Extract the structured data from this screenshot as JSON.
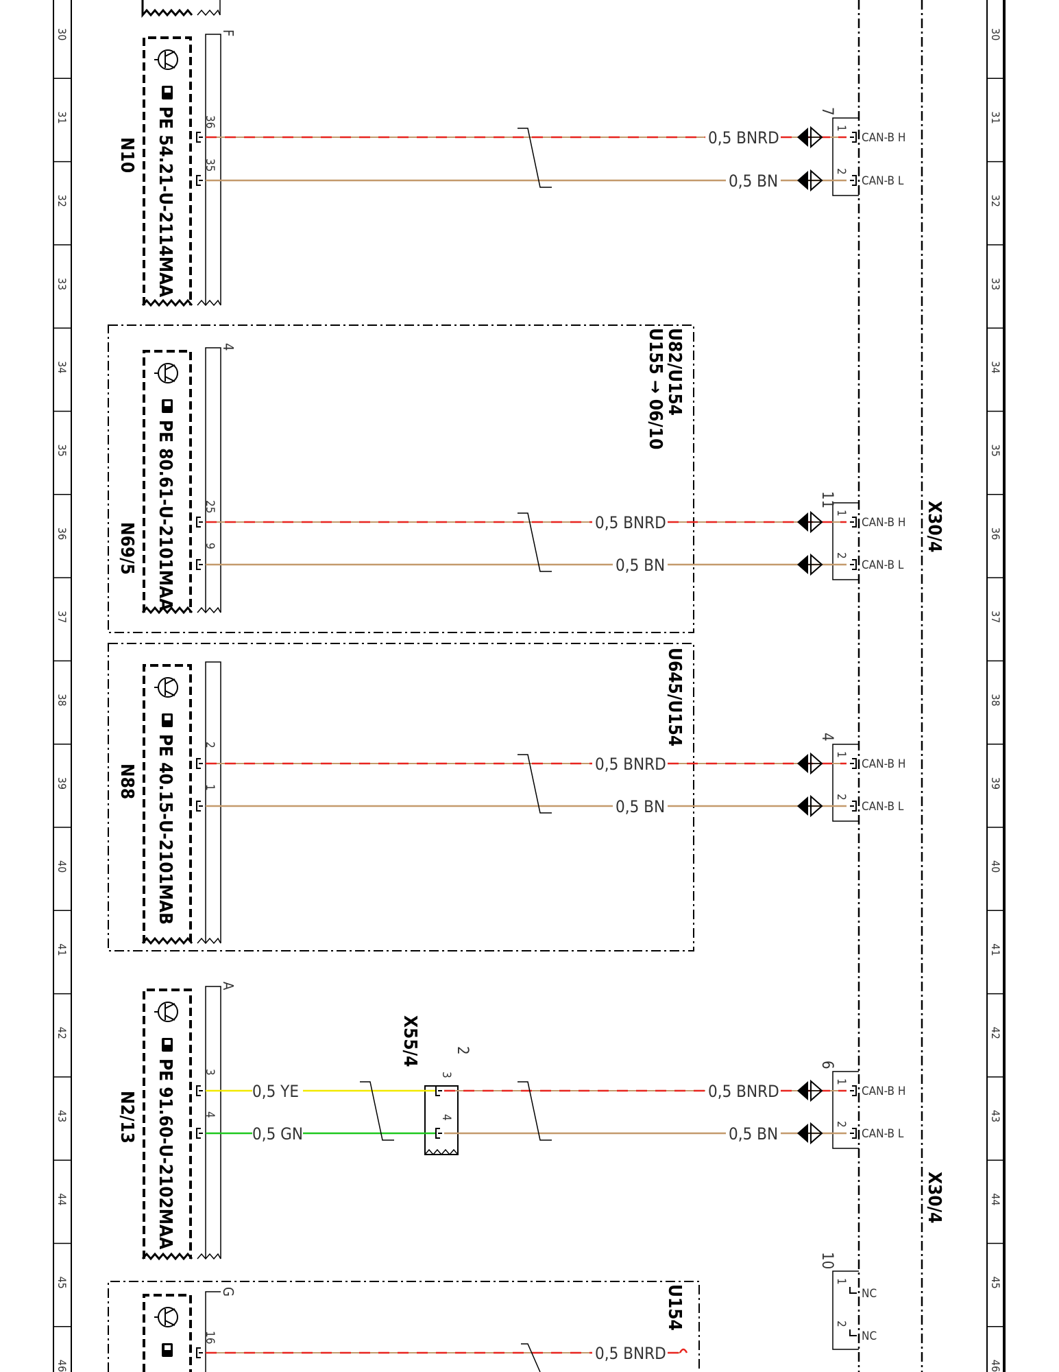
{
  "ruler_rows": [
    "30",
    "31",
    "32",
    "33",
    "34",
    "35",
    "36",
    "37",
    "38",
    "39",
    "40",
    "41",
    "42",
    "43",
    "44",
    "45",
    "46"
  ],
  "bus_connector": "X30/4",
  "modules": [
    {
      "id": "N10",
      "part": "PE 54.21-U-2114MAA",
      "connector_letter": "F",
      "enclosure_labels": [],
      "wires": [
        {
          "pin": "36",
          "label": "0,5 BNRD",
          "signal": "CAN-B H",
          "bus_pin": "1"
        },
        {
          "pin": "35",
          "label": "0,5 BN",
          "signal": "CAN-B L",
          "bus_pin": "2"
        }
      ],
      "bus_group": "7"
    },
    {
      "id": "N69/5",
      "part": "PE 80.61-U-2101MAA",
      "connector_letter": "4",
      "enclosure_labels": [
        "U82/U154",
        "U155 → 06/10"
      ],
      "wires": [
        {
          "pin": "25",
          "label": "0,5 BNRD",
          "signal": "CAN-B H",
          "bus_pin": "1"
        },
        {
          "pin": "9",
          "label": "0,5 BN",
          "signal": "CAN-B L",
          "bus_pin": "2"
        }
      ],
      "bus_group": "11"
    },
    {
      "id": "N88",
      "part": "PE 40.15-U-2101MAB",
      "connector_letter": "",
      "enclosure_labels": [
        "U645/U154"
      ],
      "wires": [
        {
          "pin": "2",
          "label": "0,5 BNRD",
          "signal": "CAN-B H",
          "bus_pin": "1"
        },
        {
          "pin": "1",
          "label": "0,5 BN",
          "signal": "CAN-B L",
          "bus_pin": "2"
        }
      ],
      "bus_group": "4"
    },
    {
      "id": "N2/13",
      "part": "PE 91.60-U-2102MAA",
      "connector_letter": "A",
      "enclosure_labels": [],
      "wires": [
        {
          "pin": "3",
          "label": "0,5 YE",
          "label_after": "0,5 BNRD",
          "signal": "CAN-B H",
          "bus_pin": "1",
          "mid_pin": "3"
        },
        {
          "pin": "4",
          "label": "0,5 GN",
          "label_after": "0,5 BN",
          "signal": "CAN-B L",
          "bus_pin": "2",
          "mid_pin": "4"
        }
      ],
      "inline_connector": {
        "name": "X55/4",
        "group": "2"
      },
      "bus_group": "6"
    }
  ],
  "spare_group": {
    "group": "10",
    "pins": [
      "1",
      "2"
    ],
    "signal": "NC"
  },
  "bottom_module": {
    "connector_letter": "G",
    "enclosure_label": "U154",
    "pin": "16",
    "label": "0,5 BNRD"
  },
  "colors": {
    "red": "#e8251f",
    "brown": "#c49a6c",
    "yellow": "#f2e900",
    "green": "#1ec81e"
  }
}
